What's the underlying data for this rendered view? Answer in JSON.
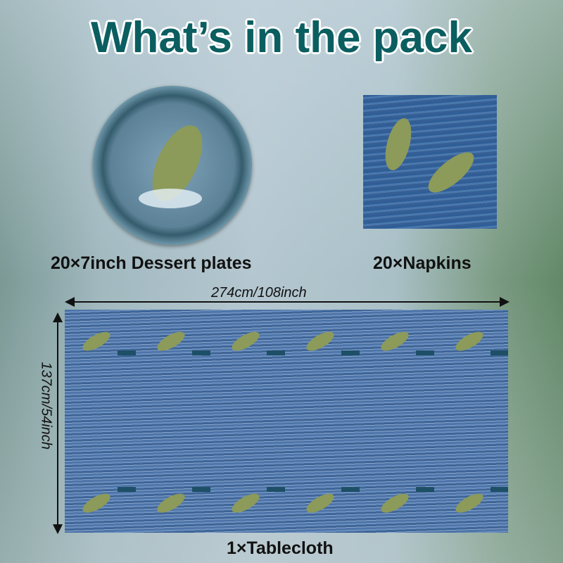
{
  "title": "What’s in the pack",
  "items": [
    {
      "label": "20×7inch Dessert plates"
    },
    {
      "label": "20×Napkins"
    },
    {
      "label": "1×Tablecloth"
    }
  ],
  "dimensions": {
    "width": "274cm/108inch",
    "height": "137cm/54inch"
  },
  "colors": {
    "title": "#0b5e60",
    "water": "#4d74a8",
    "fish": "#8c9a5a"
  }
}
